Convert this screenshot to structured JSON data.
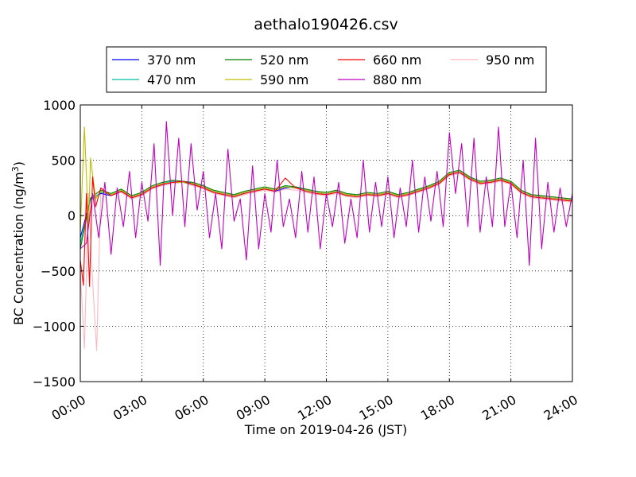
{
  "chart_data": {
    "type": "line",
    "title": "aethalo190426.csv",
    "xlabel": "Time on 2019-04-26 (JST)",
    "ylabel_main": "BC Concentration (ng/m",
    "ylabel_sup": "3",
    "ylabel_end": ")",
    "xlim_hours": [
      0,
      24
    ],
    "ylim": [
      -1500,
      1000
    ],
    "x_ticks": [
      {
        "hour": 0,
        "label": "00:00"
      },
      {
        "hour": 3,
        "label": "03:00"
      },
      {
        "hour": 6,
        "label": "06:00"
      },
      {
        "hour": 9,
        "label": "09:00"
      },
      {
        "hour": 12,
        "label": "12:00"
      },
      {
        "hour": 15,
        "label": "15:00"
      },
      {
        "hour": 18,
        "label": "18:00"
      },
      {
        "hour": 21,
        "label": "21:00"
      },
      {
        "hour": 24,
        "label": "24:00"
      }
    ],
    "y_ticks": [
      {
        "value": 1000,
        "label": "1000"
      },
      {
        "value": 500,
        "label": "500"
      },
      {
        "value": 0,
        "label": "0"
      },
      {
        "value": -500,
        "label": "−500"
      },
      {
        "value": -1000,
        "label": "−1000"
      },
      {
        "value": -1500,
        "label": "−1500"
      }
    ],
    "grid": true,
    "grid_style": "dotted",
    "legend_position": "above-plot",
    "legend_columns": 4,
    "series": [
      {
        "name": "370 nm",
        "color": "#0000ff",
        "x": [
          0,
          0.5,
          1,
          1.5,
          2,
          2.5,
          3,
          3.5,
          4,
          4.5,
          5,
          5.5,
          6,
          6.5,
          7,
          7.5,
          8,
          8.5,
          9,
          9.5,
          10,
          10.5,
          11,
          11.5,
          12,
          12.5,
          13,
          13.5,
          14,
          14.5,
          15,
          15.5,
          16,
          16.5,
          17,
          17.5,
          18,
          18.5,
          19,
          19.5,
          20,
          20.5,
          21,
          21.5,
          22,
          22.5,
          23,
          23.5,
          24
        ],
        "y": [
          -200,
          150,
          200,
          180,
          220,
          170,
          200,
          250,
          280,
          300,
          310,
          290,
          260,
          220,
          200,
          180,
          210,
          230,
          240,
          220,
          250,
          260,
          230,
          210,
          200,
          220,
          190,
          180,
          200,
          190,
          210,
          180,
          200,
          230,
          260,
          300,
          380,
          400,
          340,
          300,
          310,
          330,
          300,
          220,
          180,
          170,
          160,
          150,
          140
        ]
      },
      {
        "name": "470 nm",
        "color": "#00bfa0",
        "x": [
          0,
          0.5,
          1,
          1.5,
          2,
          2.5,
          3,
          3.5,
          4,
          4.5,
          5,
          5.5,
          6,
          6.5,
          7,
          7.5,
          8,
          8.5,
          9,
          9.5,
          10,
          10.5,
          11,
          11.5,
          12,
          12.5,
          13,
          13.5,
          14,
          14.5,
          15,
          15.5,
          16,
          16.5,
          17,
          17.5,
          18,
          18.5,
          19,
          19.5,
          20,
          20.5,
          21,
          21.5,
          22,
          22.5,
          23,
          23.5,
          24
        ],
        "y": [
          -250,
          140,
          210,
          190,
          230,
          160,
          190,
          260,
          290,
          310,
          300,
          280,
          250,
          210,
          190,
          170,
          200,
          220,
          250,
          230,
          260,
          250,
          220,
          200,
          190,
          210,
          180,
          170,
          190,
          180,
          200,
          170,
          190,
          220,
          250,
          290,
          370,
          390,
          330,
          290,
          300,
          320,
          290,
          210,
          170,
          160,
          150,
          140,
          130
        ]
      },
      {
        "name": "520 nm",
        "color": "#008000",
        "x": [
          0,
          0.5,
          1,
          1.5,
          2,
          2.5,
          3,
          3.5,
          4,
          4.5,
          5,
          5.5,
          6,
          6.5,
          7,
          7.5,
          8,
          8.5,
          9,
          9.5,
          10,
          10.5,
          11,
          11.5,
          12,
          12.5,
          13,
          13.5,
          14,
          14.5,
          15,
          15.5,
          16,
          16.5,
          17,
          17.5,
          18,
          18.5,
          19,
          19.5,
          20,
          20.5,
          21,
          21.5,
          22,
          22.5,
          23,
          23.5,
          24
        ],
        "y": [
          -300,
          160,
          230,
          200,
          240,
          180,
          210,
          270,
          300,
          320,
          310,
          300,
          270,
          230,
          210,
          190,
          220,
          240,
          260,
          240,
          270,
          260,
          240,
          220,
          210,
          230,
          200,
          190,
          210,
          200,
          220,
          190,
          210,
          240,
          270,
          310,
          390,
          410,
          350,
          310,
          320,
          340,
          310,
          230,
          190,
          180,
          170,
          160,
          150
        ]
      },
      {
        "name": "590 nm",
        "color": "#bfbf00",
        "x": [
          0,
          0.2,
          0.4,
          0.5,
          0.75,
          1,
          1.5,
          2,
          2.5,
          3,
          3.5,
          4,
          4.5,
          5,
          5.5,
          6,
          6.5,
          7,
          7.5,
          8,
          8.5,
          9,
          9.5,
          10,
          10.5,
          11,
          11.5,
          12,
          12.5,
          13,
          13.5,
          14,
          14.5,
          15,
          15.5,
          16,
          16.5,
          17,
          17.5,
          18,
          18.5,
          19,
          19.5,
          20,
          20.5,
          21,
          21.5,
          22,
          22.5,
          23,
          23.5,
          24
        ],
        "y": [
          -150,
          800,
          -100,
          520,
          150,
          220,
          190,
          230,
          170,
          200,
          260,
          290,
          300,
          300,
          290,
          260,
          220,
          200,
          180,
          210,
          230,
          250,
          230,
          260,
          250,
          230,
          210,
          200,
          220,
          190,
          180,
          200,
          190,
          210,
          180,
          200,
          230,
          260,
          300,
          380,
          400,
          340,
          300,
          310,
          330,
          300,
          220,
          180,
          170,
          160,
          150,
          140
        ]
      },
      {
        "name": "660 nm",
        "color": "#ff0000",
        "x": [
          0,
          0.15,
          0.3,
          0.45,
          0.6,
          0.75,
          1,
          1.5,
          2,
          2.5,
          3,
          3.5,
          4,
          4.5,
          5,
          5.5,
          6,
          6.5,
          7,
          7.5,
          8,
          8.5,
          9,
          9.5,
          10,
          10.5,
          11,
          11.5,
          12,
          12.5,
          13,
          13.5,
          14,
          14.5,
          15,
          15.5,
          16,
          16.5,
          17,
          17.5,
          18,
          18.5,
          19,
          19.5,
          20,
          20.5,
          21,
          21.5,
          22,
          22.5,
          23,
          23.5,
          24
        ],
        "y": [
          -400,
          -630,
          200,
          -640,
          350,
          80,
          250,
          180,
          220,
          160,
          190,
          250,
          280,
          300,
          310,
          280,
          250,
          210,
          190,
          170,
          200,
          220,
          240,
          220,
          340,
          250,
          220,
          200,
          190,
          210,
          180,
          170,
          190,
          180,
          200,
          170,
          190,
          220,
          250,
          290,
          370,
          390,
          330,
          290,
          300,
          320,
          290,
          210,
          170,
          160,
          150,
          140,
          130
        ]
      },
      {
        "name": "880 nm",
        "color": "#bf00bf",
        "x": [
          0,
          0.3,
          0.6,
          0.9,
          1.2,
          1.5,
          1.8,
          2.1,
          2.4,
          2.7,
          3,
          3.3,
          3.6,
          3.9,
          4.2,
          4.5,
          4.8,
          5.1,
          5.4,
          5.7,
          6,
          6.3,
          6.6,
          6.9,
          7.2,
          7.5,
          7.8,
          8.1,
          8.4,
          8.7,
          9,
          9.3,
          9.6,
          9.9,
          10.2,
          10.5,
          10.8,
          11.1,
          11.4,
          11.7,
          12,
          12.3,
          12.6,
          12.9,
          13.2,
          13.5,
          13.8,
          14.1,
          14.4,
          14.7,
          15,
          15.3,
          15.6,
          15.9,
          16.2,
          16.5,
          16.8,
          17.1,
          17.4,
          17.7,
          18,
          18.3,
          18.6,
          18.9,
          19.2,
          19.5,
          19.8,
          20.1,
          20.4,
          20.7,
          21,
          21.3,
          21.6,
          21.9,
          22.2,
          22.5,
          22.8,
          23.1,
          23.4,
          23.7,
          24
        ],
        "y": [
          -300,
          -250,
          200,
          -200,
          300,
          -350,
          250,
          -100,
          400,
          -200,
          300,
          -50,
          650,
          -450,
          850,
          0,
          700,
          -100,
          650,
          50,
          400,
          -200,
          200,
          -300,
          600,
          -50,
          150,
          -400,
          450,
          -300,
          200,
          -150,
          500,
          -100,
          150,
          -200,
          400,
          -150,
          350,
          -300,
          200,
          -100,
          300,
          -250,
          150,
          -200,
          500,
          -150,
          300,
          -100,
          350,
          -200,
          250,
          -100,
          500,
          -150,
          350,
          -50,
          400,
          -100,
          750,
          200,
          650,
          -100,
          700,
          -150,
          350,
          -100,
          800,
          -100,
          300,
          -200,
          500,
          -450,
          700,
          -300,
          300,
          -150,
          250,
          -100,
          200
        ]
      },
      {
        "name": "950 nm",
        "color": "#ffb6c1",
        "x": [
          0,
          0.2,
          0.4,
          0.6,
          0.8,
          1,
          1.5,
          2,
          2.5,
          3,
          3.5,
          4,
          4.5,
          5,
          5.5,
          6,
          6.5,
          7,
          7.5,
          8,
          8.5,
          9,
          9.5,
          10,
          10.5,
          11,
          11.5,
          12,
          12.5,
          13,
          13.5,
          14,
          14.5,
          15,
          15.5,
          16,
          16.5,
          17,
          17.5,
          18,
          18.5,
          19,
          19.5,
          20,
          20.5,
          21,
          21.5,
          22,
          22.5,
          23,
          23.5,
          24
        ],
        "y": [
          -500,
          -1200,
          200,
          -600,
          -1220,
          250,
          180,
          210,
          150,
          180,
          240,
          270,
          290,
          300,
          270,
          240,
          200,
          180,
          160,
          190,
          210,
          230,
          210,
          240,
          230,
          210,
          190,
          180,
          200,
          170,
          160,
          180,
          170,
          190,
          160,
          180,
          210,
          240,
          280,
          360,
          380,
          320,
          280,
          290,
          310,
          280,
          200,
          160,
          150,
          140,
          130,
          120
        ]
      }
    ]
  }
}
